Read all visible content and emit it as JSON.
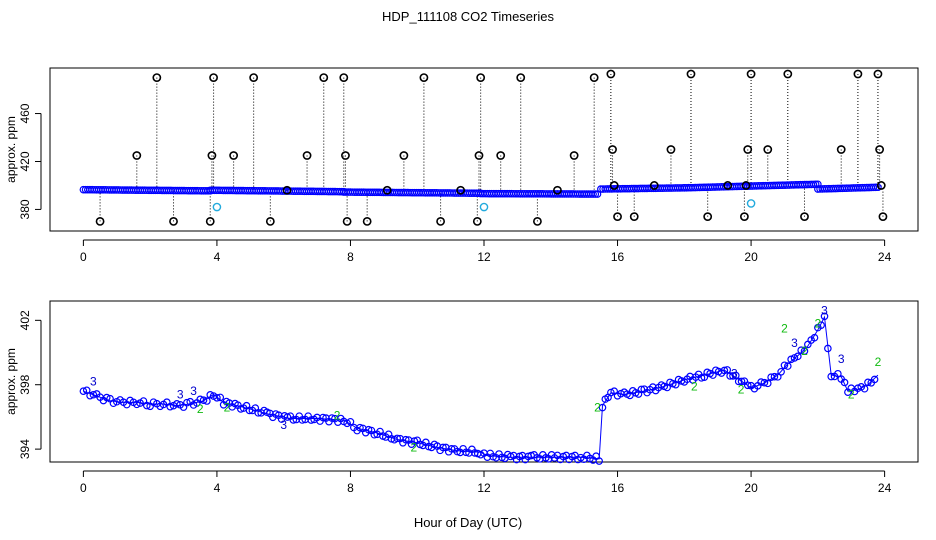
{
  "colors": {
    "primary": "#0000ff",
    "outlier": "#000000",
    "alt": "#22aadd",
    "label2": "#11bb11",
    "label3": "#0000cc"
  },
  "figure": {
    "title": "HDP_111108  CO2 Timeseries",
    "xlabel": "Hour of Day (UTC)"
  },
  "chart_data": [
    {
      "type": "scatter",
      "title": "HDP_111108  CO2 Timeseries",
      "xlabel": "",
      "ylabel": "approx. ppm",
      "xlim": [
        -1,
        25
      ],
      "ylim": [
        362,
        498
      ],
      "xticks": [
        0,
        4,
        8,
        12,
        16,
        20,
        24
      ],
      "yticks": [
        380,
        420,
        460
      ],
      "base_segments": [
        {
          "x0": 0.0,
          "x1": 3.8,
          "y0": 396.5,
          "y1": 395.5
        },
        {
          "x0": 3.8,
          "x1": 7.8,
          "y0": 396.0,
          "y1": 394.8
        },
        {
          "x0": 7.8,
          "x1": 11.9,
          "y0": 394.5,
          "y1": 393.5
        },
        {
          "x0": 11.9,
          "x1": 15.4,
          "y0": 393.2,
          "y1": 392.8
        },
        {
          "x0": 15.5,
          "x1": 18.0,
          "y0": 397.0,
          "y1": 398.0
        },
        {
          "x0": 18.0,
          "x1": 22.0,
          "y0": 398.0,
          "y1": 401.0
        },
        {
          "x0": 22.0,
          "x1": 23.8,
          "y0": 397.0,
          "y1": 398.5
        }
      ],
      "outliers": [
        {
          "x": 0.5,
          "y": 370
        },
        {
          "x": 1.6,
          "y": 425
        },
        {
          "x": 2.2,
          "y": 490
        },
        {
          "x": 2.7,
          "y": 370
        },
        {
          "x": 3.8,
          "y": 370
        },
        {
          "x": 3.85,
          "y": 425
        },
        {
          "x": 3.9,
          "y": 490
        },
        {
          "x": 4.5,
          "y": 425
        },
        {
          "x": 5.1,
          "y": 490
        },
        {
          "x": 5.6,
          "y": 370
        },
        {
          "x": 6.1,
          "y": 396
        },
        {
          "x": 6.7,
          "y": 425
        },
        {
          "x": 7.2,
          "y": 490
        },
        {
          "x": 7.8,
          "y": 490
        },
        {
          "x": 7.85,
          "y": 425
        },
        {
          "x": 7.9,
          "y": 370
        },
        {
          "x": 8.5,
          "y": 370
        },
        {
          "x": 9.1,
          "y": 396
        },
        {
          "x": 9.6,
          "y": 425
        },
        {
          "x": 10.2,
          "y": 490
        },
        {
          "x": 10.7,
          "y": 370
        },
        {
          "x": 11.3,
          "y": 396
        },
        {
          "x": 11.8,
          "y": 370
        },
        {
          "x": 11.85,
          "y": 425
        },
        {
          "x": 11.9,
          "y": 490
        },
        {
          "x": 12.5,
          "y": 425
        },
        {
          "x": 13.1,
          "y": 490
        },
        {
          "x": 13.6,
          "y": 370
        },
        {
          "x": 14.2,
          "y": 396
        },
        {
          "x": 14.7,
          "y": 425
        },
        {
          "x": 15.3,
          "y": 490
        },
        {
          "x": 15.8,
          "y": 493
        },
        {
          "x": 15.85,
          "y": 430
        },
        {
          "x": 15.9,
          "y": 400
        },
        {
          "x": 16.0,
          "y": 374
        },
        {
          "x": 16.5,
          "y": 374
        },
        {
          "x": 17.1,
          "y": 400
        },
        {
          "x": 17.6,
          "y": 430
        },
        {
          "x": 18.2,
          "y": 493
        },
        {
          "x": 18.7,
          "y": 374
        },
        {
          "x": 19.3,
          "y": 400
        },
        {
          "x": 19.8,
          "y": 374
        },
        {
          "x": 19.85,
          "y": 400
        },
        {
          "x": 19.9,
          "y": 430
        },
        {
          "x": 20.0,
          "y": 493
        },
        {
          "x": 20.5,
          "y": 430
        },
        {
          "x": 21.1,
          "y": 493
        },
        {
          "x": 21.6,
          "y": 374
        },
        {
          "x": 22.7,
          "y": 430
        },
        {
          "x": 23.2,
          "y": 493
        },
        {
          "x": 23.8,
          "y": 493
        },
        {
          "x": 23.85,
          "y": 430
        },
        {
          "x": 23.9,
          "y": 400
        },
        {
          "x": 23.95,
          "y": 374
        }
      ],
      "cyan_points": [
        {
          "x": 4.0,
          "y": 382
        },
        {
          "x": 12.0,
          "y": 382
        },
        {
          "x": 20.0,
          "y": 385
        }
      ]
    },
    {
      "type": "scatter",
      "title": "",
      "xlabel": "Hour of Day (UTC)",
      "ylabel": "approx. ppm",
      "xlim": [
        -1,
        25
      ],
      "ylim": [
        393.2,
        403.2
      ],
      "xticks": [
        0,
        4,
        8,
        12,
        16,
        20,
        24
      ],
      "yticks": [
        394,
        398,
        402
      ],
      "series": [
        {
          "name": "CO2",
          "x": [
            0.0,
            0.4,
            0.8,
            1.2,
            1.6,
            2.0,
            2.4,
            2.8,
            3.2,
            3.6,
            3.9,
            4.2,
            4.8,
            5.5,
            6.2,
            7.0,
            7.8,
            8.2,
            8.8,
            9.4,
            10.0,
            10.6,
            11.2,
            11.9,
            12.1,
            12.8,
            13.5,
            14.2,
            14.9,
            15.45,
            15.55,
            15.8,
            16.2,
            16.8,
            17.4,
            18.0,
            18.6,
            19.2,
            19.8,
            20.0,
            20.4,
            20.8,
            21.1,
            21.4,
            21.7,
            22.0,
            22.2,
            22.4,
            22.7,
            22.9,
            23.2,
            23.5,
            23.8
          ],
          "y": [
            397.6,
            397.3,
            397.0,
            396.9,
            396.9,
            396.8,
            396.8,
            396.7,
            396.8,
            397.0,
            397.4,
            396.9,
            396.6,
            396.2,
            395.9,
            395.9,
            395.8,
            395.3,
            395.0,
            394.6,
            394.4,
            394.1,
            393.9,
            393.8,
            393.6,
            393.5,
            393.5,
            393.5,
            393.5,
            393.4,
            396.7,
            397.5,
            397.4,
            397.6,
            397.9,
            398.3,
            398.6,
            398.9,
            398.1,
            397.8,
            398.1,
            398.6,
            399.3,
            399.8,
            400.4,
            401.4,
            402.2,
            398.6,
            398.5,
            397.6,
            397.7,
            398.0,
            398.6
          ]
        }
      ],
      "label_points": [
        {
          "x": 0.3,
          "y": 398.2,
          "label": "3",
          "color": "#0000cc"
        },
        {
          "x": 2.9,
          "y": 397.4,
          "label": "3",
          "color": "#0000cc"
        },
        {
          "x": 3.3,
          "y": 397.6,
          "label": "3",
          "color": "#0000cc"
        },
        {
          "x": 3.5,
          "y": 396.5,
          "label": "2",
          "color": "#11bb11"
        },
        {
          "x": 4.3,
          "y": 396.6,
          "label": "2",
          "color": "#11bb11"
        },
        {
          "x": 6.0,
          "y": 395.5,
          "label": "3",
          "color": "#0000cc"
        },
        {
          "x": 7.6,
          "y": 396.1,
          "label": "2",
          "color": "#11bb11"
        },
        {
          "x": 9.9,
          "y": 394.1,
          "label": "2",
          "color": "#11bb11"
        },
        {
          "x": 15.4,
          "y": 396.6,
          "label": "2",
          "color": "#11bb11"
        },
        {
          "x": 18.3,
          "y": 397.9,
          "label": "2",
          "color": "#11bb11"
        },
        {
          "x": 19.5,
          "y": 398.7,
          "label": "3",
          "color": "#0000cc"
        },
        {
          "x": 19.7,
          "y": 397.7,
          "label": "2",
          "color": "#11bb11"
        },
        {
          "x": 21.0,
          "y": 401.5,
          "label": "2",
          "color": "#11bb11"
        },
        {
          "x": 21.3,
          "y": 400.6,
          "label": "3",
          "color": "#0000cc"
        },
        {
          "x": 21.6,
          "y": 400.1,
          "label": "2",
          "color": "#11bb11"
        },
        {
          "x": 22.0,
          "y": 401.8,
          "label": "2",
          "color": "#11bb11"
        },
        {
          "x": 22.2,
          "y": 402.6,
          "label": "3",
          "color": "#0000cc"
        },
        {
          "x": 22.7,
          "y": 399.6,
          "label": "3",
          "color": "#0000cc"
        },
        {
          "x": 23.0,
          "y": 397.4,
          "label": "2",
          "color": "#11bb11"
        },
        {
          "x": 23.8,
          "y": 399.4,
          "label": "2",
          "color": "#11bb11"
        }
      ]
    }
  ]
}
